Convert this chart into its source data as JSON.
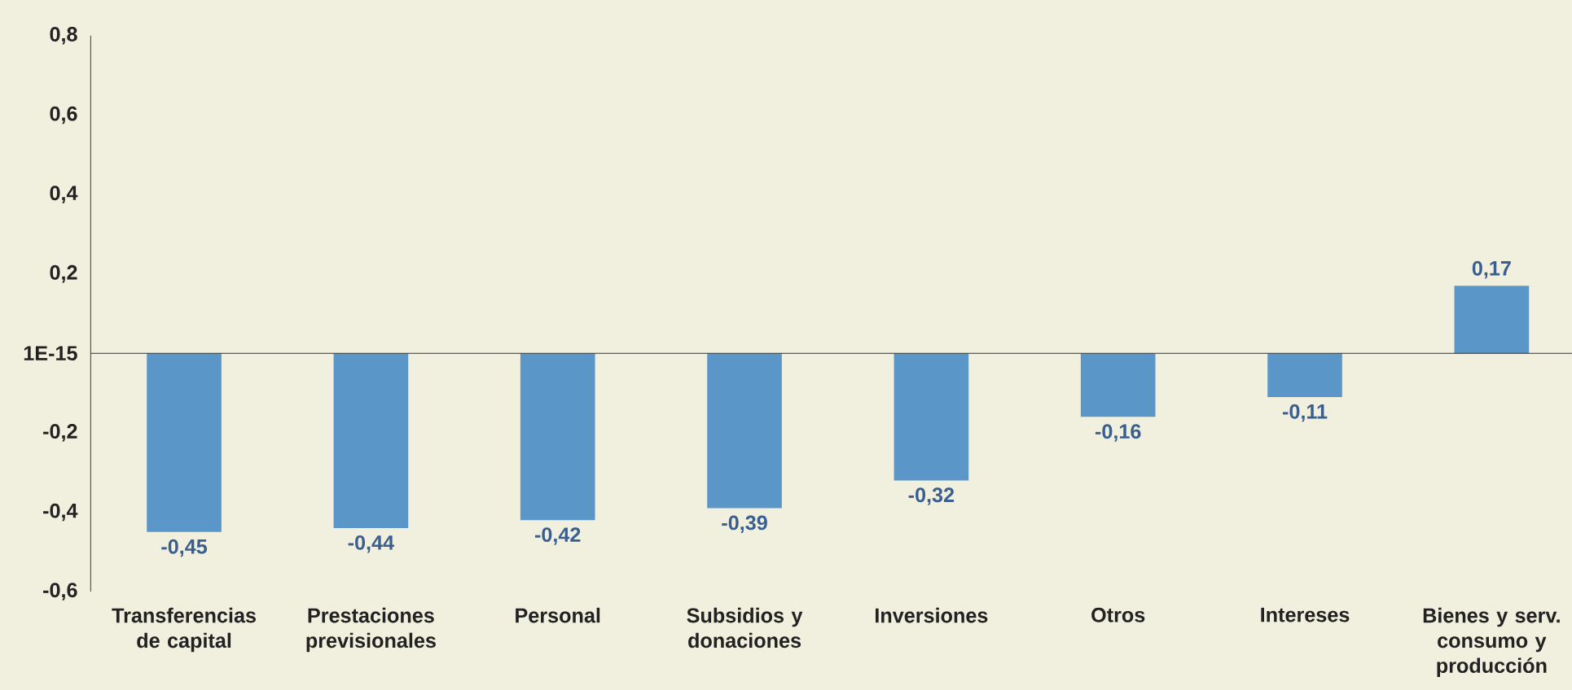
{
  "chart_data": {
    "type": "bar",
    "ylim": [
      -0.6,
      0.8
    ],
    "yticks": [
      {
        "value": -0.6,
        "label": "-0,6"
      },
      {
        "value": -0.4,
        "label": "-0,4"
      },
      {
        "value": -0.2,
        "label": "-0,2"
      },
      {
        "value": 0,
        "label": "1E-15"
      },
      {
        "value": 0.2,
        "label": "0,2"
      },
      {
        "value": 0.4,
        "label": "0,4"
      },
      {
        "value": 0.6,
        "label": "0,6"
      },
      {
        "value": 0.8,
        "label": "0,8"
      }
    ],
    "categories": [
      "Transferencias de capital",
      "Prestaciones previsionales",
      "Personal",
      "Subsidios y donaciones",
      "Inversiones",
      "Otros",
      "Intereses",
      "Bienes y serv. consumo y producción"
    ],
    "values": [
      -0.45,
      -0.44,
      -0.42,
      -0.39,
      -0.32,
      -0.16,
      -0.11,
      0.17
    ],
    "value_labels": [
      "-0,45",
      "-0,44",
      "-0,42",
      "-0,39",
      "-0,32",
      "-0,16",
      "-0,11",
      "0,17"
    ],
    "color": "#5b96c9"
  }
}
